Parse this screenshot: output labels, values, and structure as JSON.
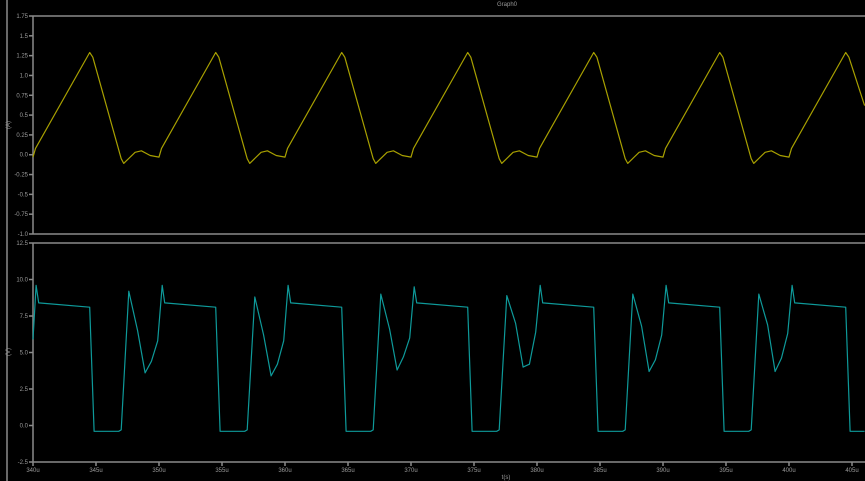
{
  "title": "Graph0",
  "colors": {
    "background": "#000000",
    "axis": "#8a8a8a",
    "text": "#9a9a9a"
  },
  "chart_data": [
    {
      "type": "line",
      "title": "Graph0",
      "xlabel": "t(s)",
      "ylabel": "(A)",
      "xlim": [
        340,
        406
      ],
      "ylim": [
        -1.0,
        1.75
      ],
      "grid": false,
      "yticks": [
        "1.75",
        "1.5",
        "1.25",
        "1.0",
        "0.75",
        "0.5",
        "0.25",
        "0.0",
        "-0.25",
        "-0.5",
        "-0.75",
        "-1.0"
      ],
      "ytick_values": [
        1.75,
        1.5,
        1.25,
        1.0,
        0.75,
        0.5,
        0.25,
        0.0,
        -0.25,
        -0.5,
        -0.75,
        -1.0
      ],
      "series": [
        {
          "color": "#a8a000",
          "x": [
            340,
            340.2,
            344.5,
            344.75,
            347,
            347.2,
            348.1,
            348.6,
            349.3,
            350,
            350.2,
            354.5,
            354.75,
            357,
            357.2,
            358.1,
            358.6,
            359.3,
            360,
            360.2,
            364.5,
            364.75,
            367,
            367.2,
            368.1,
            368.6,
            369.3,
            370,
            370.2,
            374.5,
            374.75,
            377,
            377.2,
            378.1,
            378.6,
            379.3,
            380,
            380.2,
            384.5,
            384.75,
            387,
            387.2,
            388.1,
            388.6,
            389.3,
            390,
            390.2,
            394.5,
            394.75,
            397,
            397.2,
            398.1,
            398.6,
            399.3,
            400,
            400.2,
            404.5,
            404.75,
            406
          ],
          "y": [
            -0.03,
            0.08,
            1.29,
            1.23,
            -0.05,
            -0.11,
            0.03,
            0.05,
            -0.01,
            -0.03,
            0.08,
            1.29,
            1.23,
            -0.05,
            -0.11,
            0.03,
            0.05,
            -0.01,
            -0.03,
            0.08,
            1.29,
            1.23,
            -0.05,
            -0.11,
            0.03,
            0.05,
            -0.01,
            -0.03,
            0.08,
            1.29,
            1.23,
            -0.05,
            -0.11,
            0.03,
            0.05,
            -0.01,
            -0.03,
            0.08,
            1.29,
            1.23,
            -0.05,
            -0.11,
            0.03,
            0.05,
            -0.01,
            -0.03,
            0.08,
            1.29,
            1.23,
            -0.05,
            -0.11,
            0.03,
            0.05,
            -0.01,
            -0.03,
            0.08,
            1.29,
            1.23,
            0.62
          ]
        }
      ]
    },
    {
      "type": "line",
      "xlabel": "t(s)",
      "ylabel": "(V)",
      "xlim": [
        340,
        406
      ],
      "ylim": [
        -2.5,
        12.5
      ],
      "grid": false,
      "yticks": [
        "12.5",
        "10.0",
        "7.5",
        "5.0",
        "2.5",
        "0.0",
        "-2.5"
      ],
      "ytick_values": [
        12.5,
        10.0,
        7.5,
        5.0,
        2.5,
        0.0,
        -2.5
      ],
      "xticks": [
        "340u",
        "345u",
        "350u",
        "355u",
        "360u",
        "365u",
        "370u",
        "375u",
        "380u",
        "385u",
        "390u",
        "395u",
        "400u",
        "405u"
      ],
      "xtick_values": [
        340,
        345,
        350,
        355,
        360,
        365,
        370,
        375,
        380,
        385,
        390,
        395,
        400,
        405
      ],
      "series": [
        {
          "color": "#0e9a9a",
          "x": [
            340,
            340.25,
            340.45,
            344.5,
            344.85,
            346.8,
            347,
            347.6,
            348.3,
            348.9,
            349.4,
            349.9,
            350.25,
            350.45,
            354.5,
            354.85,
            356.8,
            357,
            357.6,
            358.3,
            358.9,
            359.4,
            359.9,
            360.25,
            360.45,
            364.5,
            364.85,
            366.8,
            367,
            367.6,
            368.3,
            368.9,
            369.4,
            369.9,
            370.25,
            370.45,
            374.5,
            374.85,
            376.8,
            377,
            377.6,
            378.3,
            378.9,
            379.4,
            379.9,
            380.25,
            380.45,
            384.5,
            384.85,
            386.8,
            387,
            387.6,
            388.3,
            388.9,
            389.4,
            389.9,
            390.25,
            390.45,
            394.5,
            394.85,
            396.8,
            397,
            397.6,
            398.3,
            398.9,
            399.4,
            399.9,
            400.25,
            400.45,
            404.5,
            404.85,
            406
          ],
          "y": [
            5.9,
            9.6,
            8.4,
            8.1,
            -0.4,
            -0.4,
            -0.3,
            9.2,
            6.5,
            3.6,
            4.4,
            5.8,
            9.6,
            8.4,
            8.1,
            -0.4,
            -0.4,
            -0.3,
            8.8,
            6.2,
            3.4,
            4.2,
            5.8,
            9.6,
            8.4,
            8.1,
            -0.4,
            -0.4,
            -0.3,
            9.0,
            6.6,
            3.8,
            4.7,
            6.0,
            9.5,
            8.4,
            8.1,
            -0.4,
            -0.4,
            -0.3,
            8.9,
            7.0,
            4.0,
            4.2,
            6.4,
            9.6,
            8.4,
            8.1,
            -0.4,
            -0.4,
            -0.3,
            9.0,
            6.8,
            3.7,
            4.5,
            6.2,
            9.6,
            8.4,
            8.1,
            -0.4,
            -0.4,
            -0.3,
            9.0,
            6.9,
            3.7,
            4.6,
            6.3,
            9.6,
            8.4,
            8.1,
            -0.4,
            -0.4
          ]
        }
      ]
    }
  ]
}
